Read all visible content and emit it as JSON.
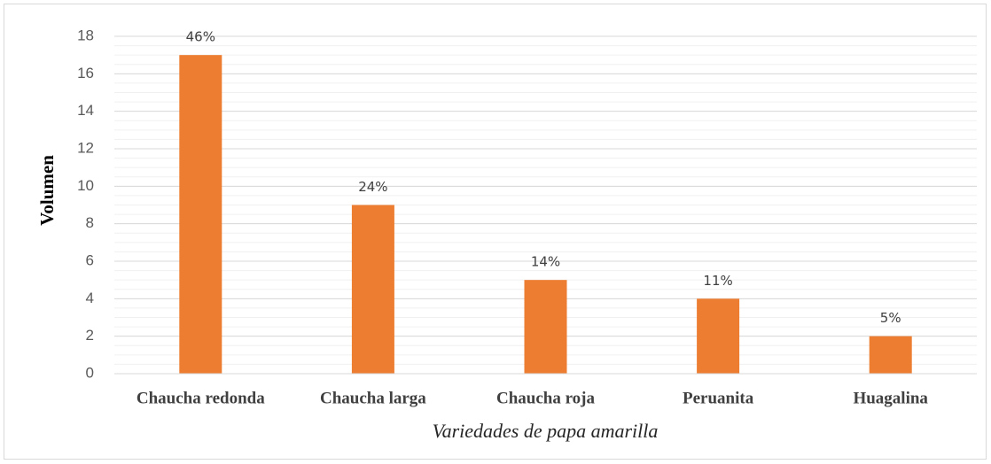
{
  "chart_data": {
    "type": "bar",
    "x_label": "Variedades de papa amarilla",
    "y_label": "Volumen",
    "categories": [
      "Chaucha redonda",
      "Chaucha larga",
      "Chaucha roja",
      "Peruanita",
      "Huagalina"
    ],
    "values": [
      17,
      9,
      5,
      4,
      2
    ],
    "annotations": [
      "46%",
      "24%",
      "14%",
      "11%",
      "5%"
    ],
    "color": "#ed7d31",
    "ylim": [
      0,
      18
    ],
    "yticks": [
      0,
      2,
      4,
      6,
      8,
      10,
      12,
      14,
      16,
      18
    ],
    "grid": true,
    "minor_grid_step": 0.5
  }
}
